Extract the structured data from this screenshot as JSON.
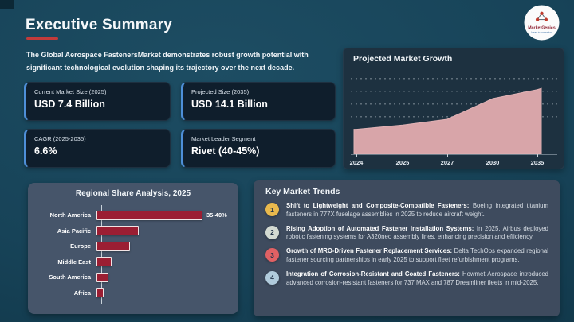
{
  "header": {
    "title": "Executive Summary",
    "description": "The Global Aerospace FastenersMarket demonstrates robust growth potential with significant technological evolution shaping its trajectory over the next decade."
  },
  "logo": {
    "name": "MarketGenics",
    "tagline": "Ideas to Innovation"
  },
  "stats": [
    {
      "label": "Current Market Size (2025)",
      "value": "USD 7.4 Billion"
    },
    {
      "label": "Projected Size (2035)",
      "value": "USD 14.1 Billion"
    },
    {
      "label": "CAGR (2025-2035)",
      "value": "6.6%"
    },
    {
      "label": "Market Leader Segment",
      "value": "Rivet (40-45%)"
    }
  ],
  "chart_data": [
    {
      "type": "area",
      "title": "Projected Market Growth",
      "x": [
        "2024",
        "2025",
        "2027",
        "2030",
        "2035"
      ],
      "values": [
        6.6,
        7.4,
        8.5,
        12.4,
        14.1
      ],
      "unit": "USD Billion (estimated from area heights; no y-axis labels shown)",
      "legend": "none",
      "grid": "4 dotted horizontal gridlines",
      "area_color": "#d8a5a9",
      "panel_color": "#1d3140"
    },
    {
      "type": "bar",
      "orientation": "horizontal",
      "title": "Regional Share Analysis, 2025",
      "categories": [
        "North America",
        "Asia Pacific",
        "Europe",
        "Middle East",
        "South America",
        "Africa"
      ],
      "values": [
        37.5,
        15,
        11.8,
        5.4,
        4.2,
        2.5
      ],
      "value_labels": [
        "35-40%",
        "",
        "",
        "",
        "",
        ""
      ],
      "unit": "% share (only North America labeled)",
      "bar_color": "#9b1e33",
      "panel_color": "#46556a"
    }
  ],
  "trends": {
    "title": "Key Market Trends",
    "items": [
      {
        "num": "1",
        "color": "#e9b94d",
        "heading": "Shift to Lightweight and Composite-Compatible Fasteners:",
        "body": "Boeing integrated titanium fasteners in 777X fuselage assemblies in 2025 to reduce aircraft weight."
      },
      {
        "num": "2",
        "color": "#d3dad2",
        "heading": "Rising Adoption of Automated Fastener Installation Systems:",
        "body": "In 2025, Airbus deployed robotic fastening systems for A320neo assembly lines, enhancing precision and efficiency."
      },
      {
        "num": "3",
        "color": "#e06164",
        "heading": "Growth of MRO-Driven Fastener Replacement Services:",
        "body": "Delta TechOps expanded regional fastener sourcing partnerships in early 2025 to support fleet refurbishment programs."
      },
      {
        "num": "4",
        "color": "#b0cbdc",
        "heading": "Integration of Corrosion-Resistant and Coated Fasteners:",
        "body": "Howmet Aerospace introduced advanced corrosion-resistant fasteners for 737 MAX and 787 Dreamliner fleets in mid-2025."
      }
    ]
  },
  "colors": {
    "background_teal": "#174358",
    "accent_red": "#c23b3b",
    "stat_card_bg": "#0f1e2c",
    "stat_card_accent": "#4e8fd8",
    "area_fill": "#d8a5a9",
    "bar_fill": "#9b1e33",
    "trends_panel": "#3e4b5e",
    "regional_panel": "#46556a"
  }
}
